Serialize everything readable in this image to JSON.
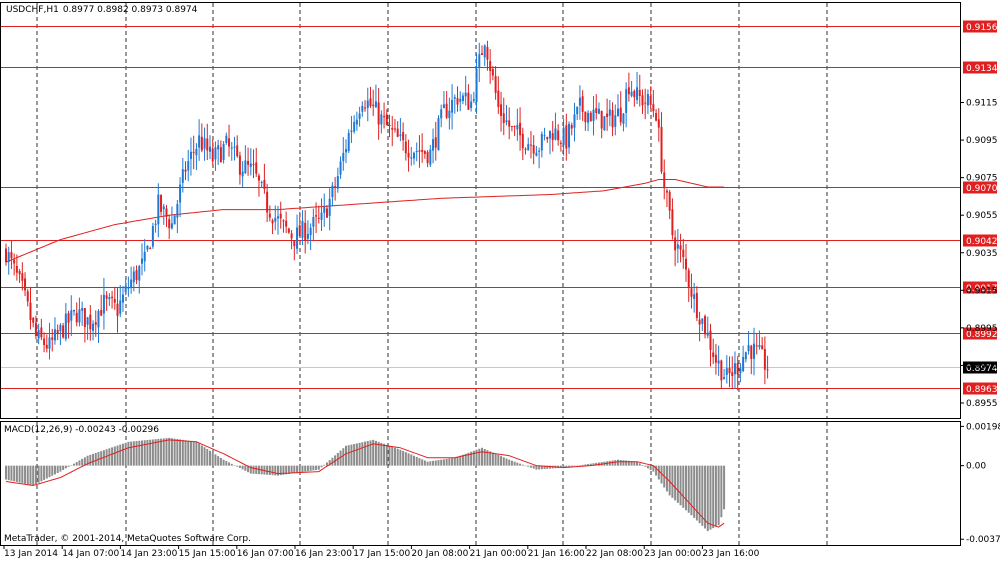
{
  "header": {
    "symbol": "USDCHF,H1",
    "ohlc": "0.8977 0.8982 0.8973 0.8974"
  },
  "macd": {
    "label": "MACD(12,26,9) -0.00243 -0.00296",
    "levels": [
      "0.00198",
      "0.00",
      "-0.00371"
    ]
  },
  "footer": {
    "copyright": "MetaTrader, © 2001-2014, MetaQuotes Software Corp."
  },
  "colors": {
    "bull": "#1e78d6",
    "bear": "#e02020",
    "level": "#e02020",
    "ma": "#e02020",
    "hist": "#8c8c8c",
    "grid": "#000000",
    "current": "#c8c8c8"
  },
  "chart_data": {
    "type": "candlestick",
    "price_ticks": [
      "0.9115",
      "0.9095",
      "0.9075",
      "0.9055",
      "0.9035",
      "0.9015",
      "0.8995",
      "0.8975",
      "0.8955"
    ],
    "levels": [
      "0.9156",
      "0.9134",
      "0.9070",
      "0.9042",
      "0.9017",
      "0.8992",
      "0.8963"
    ],
    "current_price": "0.8974",
    "ylim": [
      0.8947,
      0.9168
    ],
    "macd_ylim": [
      -0.004,
      0.0022
    ],
    "x_labels": [
      "13 Jan 2014",
      "14 Jan 07:00",
      "14 Jan 23:00",
      "15 Jan 15:00",
      "16 Jan 07:00",
      "16 Jan 23:00",
      "17 Jan 15:00",
      "20 Jan 08:00",
      "21 Jan 00:00",
      "21 Jan 16:00",
      "22 Jan 08:00",
      "23 Jan 00:00",
      "23 Jan 16:00"
    ],
    "close_path": [
      [
        0,
        0.9036
      ],
      [
        6,
        0.9015
      ],
      [
        11,
        0.899
      ],
      [
        16,
        0.8985
      ],
      [
        21,
        0.8995
      ],
      [
        26,
        0.9003
      ],
      [
        31,
        0.8998
      ],
      [
        36,
        0.9008
      ],
      [
        41,
        0.9005
      ],
      [
        46,
        0.902
      ],
      [
        51,
        0.903
      ],
      [
        56,
        0.906
      ],
      [
        61,
        0.905
      ],
      [
        66,
        0.908
      ],
      [
        71,
        0.9095
      ],
      [
        76,
        0.9085
      ],
      [
        81,
        0.9092
      ],
      [
        86,
        0.9082
      ],
      [
        91,
        0.9078
      ],
      [
        96,
        0.906
      ],
      [
        101,
        0.905
      ],
      [
        106,
        0.9043
      ],
      [
        111,
        0.9048
      ],
      [
        116,
        0.9052
      ],
      [
        121,
        0.907
      ],
      [
        126,
        0.9098
      ],
      [
        131,
        0.9118
      ],
      [
        136,
        0.911
      ],
      [
        141,
        0.91
      ],
      [
        146,
        0.9092
      ],
      [
        151,
        0.909
      ],
      [
        156,
        0.9088
      ],
      [
        161,
        0.911
      ],
      [
        166,
        0.9118
      ],
      [
        171,
        0.9115
      ],
      [
        176,
        0.915
      ],
      [
        181,
        0.9112
      ],
      [
        186,
        0.91
      ],
      [
        191,
        0.9095
      ],
      [
        196,
        0.9092
      ],
      [
        201,
        0.91
      ],
      [
        206,
        0.9095
      ],
      [
        211,
        0.9112
      ],
      [
        216,
        0.9108
      ],
      [
        221,
        0.9105
      ],
      [
        226,
        0.911
      ],
      [
        229,
        0.9125
      ],
      [
        232,
        0.9118
      ],
      [
        236,
        0.9115
      ],
      [
        239,
        0.911
      ],
      [
        242,
        0.907
      ],
      [
        245,
        0.9045
      ],
      [
        249,
        0.903
      ],
      [
        253,
        0.901
      ],
      [
        257,
        0.8995
      ],
      [
        261,
        0.8978
      ],
      [
        265,
        0.8968
      ],
      [
        269,
        0.8975
      ],
      [
        273,
        0.8985
      ],
      [
        277,
        0.898
      ],
      [
        280,
        0.8974
      ]
    ],
    "ma_path": [
      [
        0,
        0.903
      ],
      [
        20,
        0.9042
      ],
      [
        40,
        0.905
      ],
      [
        60,
        0.9055
      ],
      [
        80,
        0.9058
      ],
      [
        100,
        0.9058
      ],
      [
        120,
        0.906
      ],
      [
        140,
        0.9062
      ],
      [
        160,
        0.9064
      ],
      [
        180,
        0.9065
      ],
      [
        200,
        0.9066
      ],
      [
        220,
        0.9068
      ],
      [
        235,
        0.9072
      ],
      [
        240,
        0.9074
      ],
      [
        246,
        0.9074
      ],
      [
        252,
        0.9072
      ],
      [
        258,
        0.907
      ],
      [
        264,
        0.907
      ]
    ],
    "macd_hist_path": [
      [
        0,
        -0.0007
      ],
      [
        10,
        -0.001
      ],
      [
        20,
        -0.0003
      ],
      [
        30,
        0.0005
      ],
      [
        45,
        0.0012
      ],
      [
        60,
        0.0014
      ],
      [
        70,
        0.0012
      ],
      [
        80,
        0.0003
      ],
      [
        90,
        -0.0004
      ],
      [
        100,
        -0.0005
      ],
      [
        115,
        -0.0002
      ],
      [
        125,
        0.001
      ],
      [
        135,
        0.0013
      ],
      [
        145,
        0.0008
      ],
      [
        155,
        0.0002
      ],
      [
        165,
        0.0004
      ],
      [
        175,
        0.0009
      ],
      [
        185,
        0.0003
      ],
      [
        195,
        -0.0002
      ],
      [
        205,
        -0.0001
      ],
      [
        215,
        0.0001
      ],
      [
        225,
        0.0003
      ],
      [
        232,
        0.0002
      ],
      [
        238,
        -0.0003
      ],
      [
        244,
        -0.0015
      ],
      [
        252,
        -0.0025
      ],
      [
        258,
        -0.0033
      ],
      [
        262,
        -0.003
      ],
      [
        264,
        -0.0022
      ]
    ],
    "macd_signal_path": [
      [
        0,
        -0.0008
      ],
      [
        10,
        -0.001
      ],
      [
        20,
        -0.0006
      ],
      [
        30,
        0.0001
      ],
      [
        45,
        0.0009
      ],
      [
        60,
        0.0013
      ],
      [
        70,
        0.0012
      ],
      [
        80,
        0.0006
      ],
      [
        90,
        -0.0001
      ],
      [
        100,
        -0.0004
      ],
      [
        115,
        -0.0003
      ],
      [
        125,
        0.0006
      ],
      [
        135,
        0.0011
      ],
      [
        145,
        0.0009
      ],
      [
        155,
        0.0004
      ],
      [
        165,
        0.0004
      ],
      [
        175,
        0.0007
      ],
      [
        185,
        0.0005
      ],
      [
        195,
        0.0
      ],
      [
        205,
        -0.0001
      ],
      [
        215,
        0.0
      ],
      [
        225,
        0.0002
      ],
      [
        232,
        0.0002
      ],
      [
        238,
        0.0
      ],
      [
        244,
        -0.0008
      ],
      [
        252,
        -0.002
      ],
      [
        258,
        -0.0029
      ],
      [
        262,
        -0.0031
      ],
      [
        264,
        -0.0029
      ]
    ]
  }
}
